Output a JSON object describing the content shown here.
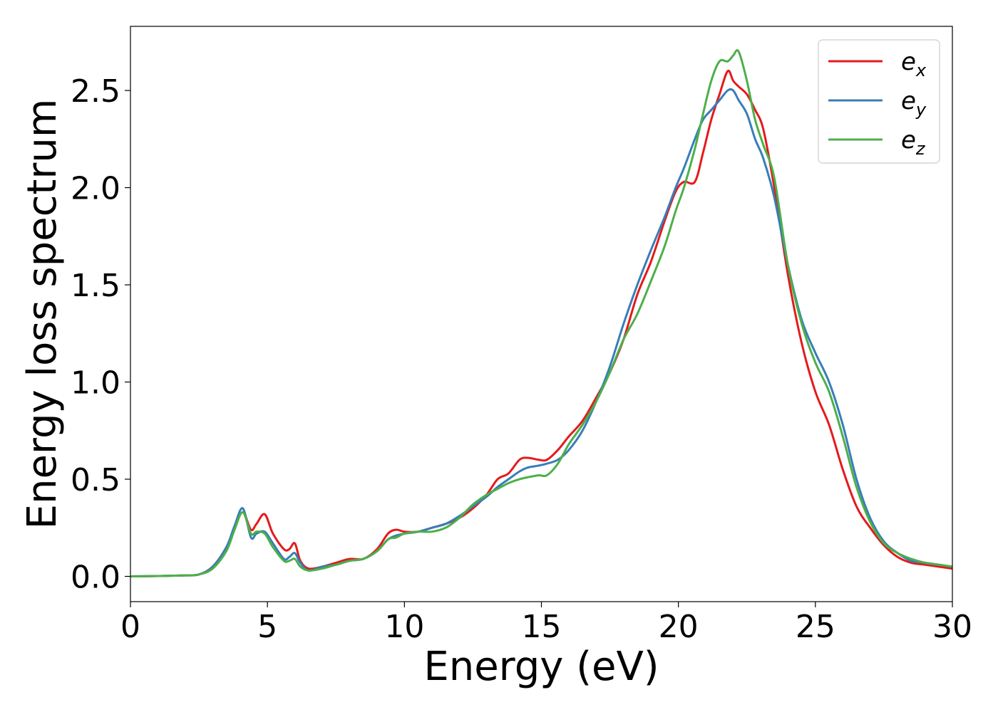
{
  "chart_data": {
    "type": "line",
    "title": "",
    "xlabel": "Energy (eV)",
    "ylabel": "Energy loss spectrum",
    "xlim": [
      0,
      30
    ],
    "ylim": [
      -0.13,
      2.83
    ],
    "xticks": [
      0,
      5,
      10,
      15,
      20,
      25,
      30
    ],
    "xtick_labels": [
      "0",
      "5",
      "10",
      "15",
      "20",
      "25",
      "30"
    ],
    "yticks": [
      0.0,
      0.5,
      1.0,
      1.5,
      2.0,
      2.5
    ],
    "ytick_labels": [
      "0.0",
      "0.5",
      "1.0",
      "1.5",
      "2.0",
      "2.5"
    ],
    "grid": false,
    "legend_position": "top-right",
    "series": [
      {
        "name": "e",
        "subscript": "x",
        "color": "#e41a1c",
        "x": [
          0,
          1,
          2,
          2.5,
          3,
          3.5,
          3.8,
          4.1,
          4.4,
          4.6,
          4.9,
          5.2,
          5.6,
          5.8,
          6.0,
          6.2,
          6.5,
          7,
          7.5,
          8,
          8.5,
          9,
          9.4,
          9.7,
          10,
          10.5,
          11,
          11.5,
          12,
          12.5,
          13,
          13.4,
          13.8,
          14.2,
          14.5,
          14.9,
          15.2,
          15.6,
          16,
          16.5,
          17,
          17.5,
          18,
          18.5,
          19,
          19.5,
          19.9,
          20.2,
          20.6,
          20.9,
          21.2,
          21.5,
          21.8,
          22.0,
          22.2,
          22.5,
          22.8,
          23.1,
          23.5,
          24,
          24.5,
          25,
          25.5,
          26,
          26.5,
          27,
          27.5,
          28,
          28.5,
          29,
          29.5,
          30
        ],
        "y": [
          0.0,
          0.002,
          0.005,
          0.01,
          0.05,
          0.15,
          0.25,
          0.33,
          0.24,
          0.27,
          0.32,
          0.22,
          0.14,
          0.14,
          0.17,
          0.08,
          0.04,
          0.05,
          0.07,
          0.09,
          0.09,
          0.14,
          0.22,
          0.24,
          0.23,
          0.23,
          0.25,
          0.27,
          0.3,
          0.35,
          0.42,
          0.5,
          0.53,
          0.6,
          0.61,
          0.6,
          0.6,
          0.65,
          0.72,
          0.8,
          0.92,
          1.05,
          1.22,
          1.45,
          1.62,
          1.83,
          1.98,
          2.03,
          2.03,
          2.18,
          2.35,
          2.48,
          2.6,
          2.55,
          2.52,
          2.48,
          2.4,
          2.3,
          2.0,
          1.55,
          1.2,
          0.95,
          0.78,
          0.55,
          0.36,
          0.25,
          0.16,
          0.1,
          0.07,
          0.06,
          0.05,
          0.04
        ]
      },
      {
        "name": "e",
        "subscript": "y",
        "color": "#377eb8",
        "x": [
          0,
          1,
          2,
          2.5,
          3,
          3.5,
          3.8,
          4.1,
          4.4,
          4.6,
          4.9,
          5.2,
          5.6,
          5.8,
          6.0,
          6.2,
          6.5,
          7,
          7.5,
          8,
          8.5,
          9,
          9.4,
          9.7,
          10,
          10.5,
          11,
          11.5,
          12,
          12.5,
          13,
          13.4,
          13.8,
          14.2,
          14.5,
          14.9,
          15.2,
          15.6,
          16,
          16.5,
          17,
          17.5,
          18,
          18.5,
          19,
          19.5,
          19.9,
          20.2,
          20.6,
          20.9,
          21.2,
          21.5,
          21.8,
          22.0,
          22.2,
          22.5,
          22.8,
          23.1,
          23.5,
          24,
          24.5,
          25,
          25.5,
          26,
          26.5,
          27,
          27.5,
          28,
          28.5,
          29,
          29.5,
          30
        ],
        "y": [
          0.0,
          0.002,
          0.005,
          0.01,
          0.05,
          0.15,
          0.26,
          0.35,
          0.2,
          0.22,
          0.23,
          0.17,
          0.09,
          0.1,
          0.12,
          0.07,
          0.03,
          0.05,
          0.06,
          0.08,
          0.09,
          0.13,
          0.19,
          0.21,
          0.22,
          0.23,
          0.25,
          0.27,
          0.31,
          0.36,
          0.41,
          0.46,
          0.5,
          0.54,
          0.56,
          0.57,
          0.58,
          0.6,
          0.65,
          0.75,
          0.9,
          1.08,
          1.3,
          1.5,
          1.68,
          1.85,
          2.0,
          2.1,
          2.25,
          2.35,
          2.4,
          2.45,
          2.5,
          2.5,
          2.45,
          2.38,
          2.25,
          2.15,
          1.95,
          1.6,
          1.32,
          1.15,
          1.0,
          0.78,
          0.5,
          0.3,
          0.18,
          0.12,
          0.08,
          0.07,
          0.06,
          0.05
        ]
      },
      {
        "name": "e",
        "subscript": "z",
        "color": "#4daf4a",
        "x": [
          0,
          1,
          2,
          2.5,
          3,
          3.5,
          3.8,
          4.1,
          4.4,
          4.6,
          4.9,
          5.2,
          5.6,
          5.8,
          6.0,
          6.2,
          6.5,
          7,
          7.5,
          8,
          8.5,
          9,
          9.4,
          9.7,
          10,
          10.5,
          11,
          11.5,
          12,
          12.5,
          13,
          13.4,
          13.8,
          14.2,
          14.5,
          14.9,
          15.2,
          15.6,
          16,
          16.5,
          17,
          17.5,
          18,
          18.5,
          19,
          19.5,
          19.9,
          20.2,
          20.6,
          20.9,
          21.2,
          21.5,
          21.8,
          22.0,
          22.2,
          22.5,
          22.8,
          23.1,
          23.5,
          24,
          24.5,
          25,
          25.5,
          26,
          26.5,
          27,
          27.5,
          28,
          28.5,
          29,
          29.5,
          30
        ],
        "y": [
          0.0,
          0.002,
          0.005,
          0.01,
          0.04,
          0.13,
          0.24,
          0.33,
          0.22,
          0.23,
          0.22,
          0.15,
          0.08,
          0.08,
          0.09,
          0.05,
          0.03,
          0.04,
          0.06,
          0.08,
          0.09,
          0.13,
          0.19,
          0.2,
          0.22,
          0.23,
          0.23,
          0.25,
          0.3,
          0.37,
          0.42,
          0.45,
          0.48,
          0.5,
          0.51,
          0.52,
          0.52,
          0.58,
          0.68,
          0.78,
          0.9,
          1.05,
          1.22,
          1.35,
          1.52,
          1.7,
          1.88,
          2.0,
          2.2,
          2.38,
          2.55,
          2.65,
          2.65,
          2.68,
          2.7,
          2.55,
          2.35,
          2.22,
          2.05,
          1.6,
          1.3,
          1.1,
          0.95,
          0.72,
          0.46,
          0.28,
          0.17,
          0.12,
          0.09,
          0.07,
          0.06,
          0.05
        ]
      }
    ]
  }
}
